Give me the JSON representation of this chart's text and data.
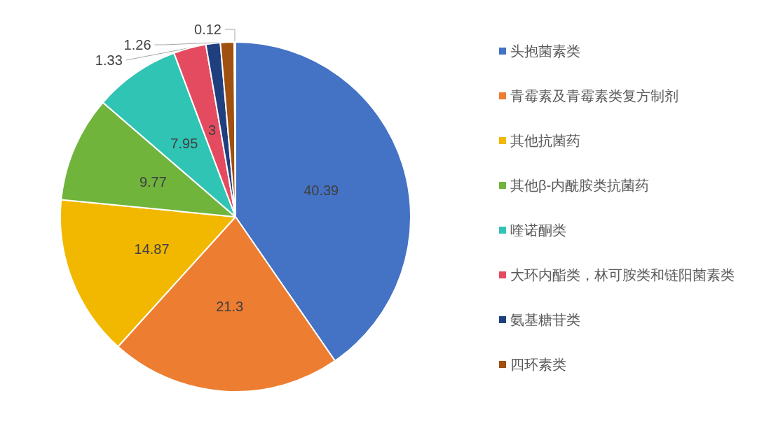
{
  "chart_data": {
    "type": "pie",
    "categories": [
      "头抱菌素类",
      "青霉素及青霉素类复方制剂",
      "其他抗菌药",
      "其他β-内酰胺类抗菌药",
      "喹诺酮类",
      "大环内酯类，林可胺类和链阳菌素类",
      "氨基糖苷类",
      "四环素类",
      null
    ],
    "values": [
      40.39,
      21.3,
      14.87,
      9.77,
      7.95,
      3,
      1.33,
      1.26,
      0.12
    ],
    "colors": [
      "#4472c4",
      "#ed7d31",
      "#f2b800",
      "#70b43c",
      "#2fc4b4",
      "#e54b60",
      "#203f7e",
      "#a0500f",
      "#a5a5a5"
    ],
    "data_labels": true,
    "legend": "right"
  }
}
